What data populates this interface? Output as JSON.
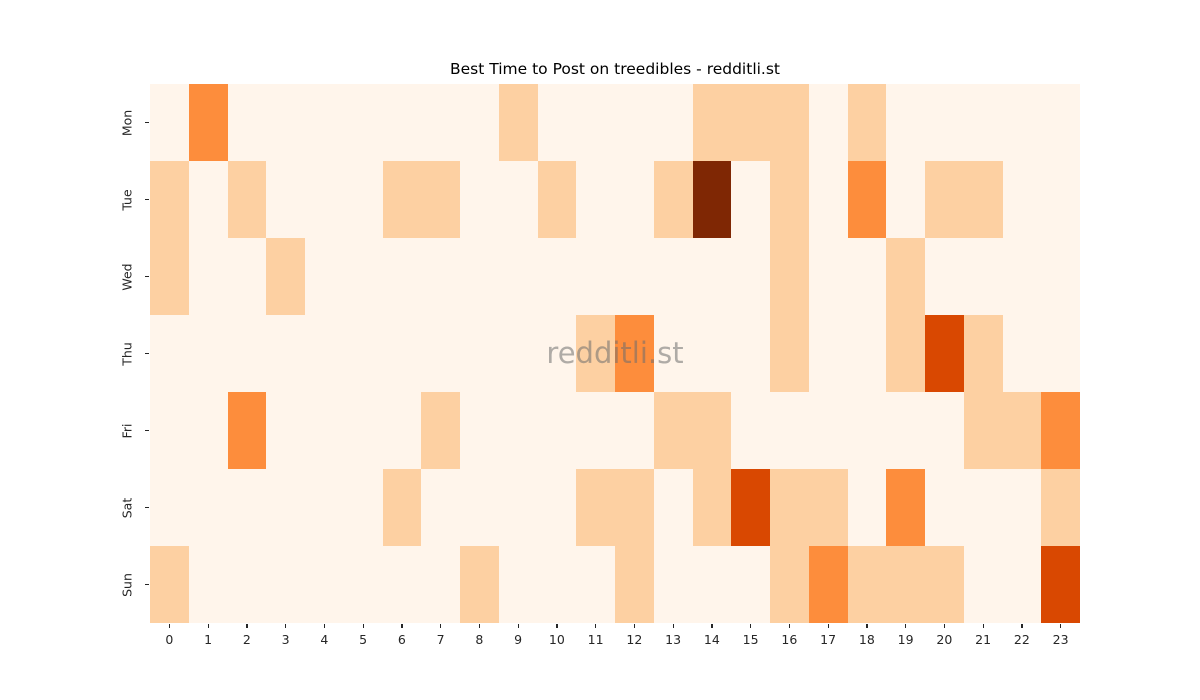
{
  "chart_data": {
    "type": "heatmap",
    "title": "Best Time to Post on treedibles - redditli.st",
    "watermark": "redditli.st",
    "xlabel": "",
    "ylabel": "",
    "legend": "none",
    "grid": false,
    "rows": [
      "Mon",
      "Tue",
      "Wed",
      "Thu",
      "Fri",
      "Sat",
      "Sun"
    ],
    "cols": [
      "0",
      "1",
      "2",
      "3",
      "4",
      "5",
      "6",
      "7",
      "8",
      "9",
      "10",
      "11",
      "12",
      "13",
      "14",
      "15",
      "16",
      "17",
      "18",
      "19",
      "20",
      "21",
      "22",
      "23"
    ],
    "values": [
      [
        0,
        2,
        0,
        0,
        0,
        0,
        0,
        0,
        0,
        1,
        0,
        0,
        0,
        0,
        1,
        1,
        1,
        0,
        1,
        0,
        0,
        0,
        0,
        0
      ],
      [
        1,
        0,
        1,
        0,
        0,
        0,
        1,
        1,
        0,
        0,
        1,
        0,
        0,
        1,
        4,
        0,
        1,
        0,
        2,
        0,
        1,
        1,
        0,
        0
      ],
      [
        1,
        0,
        0,
        1,
        0,
        0,
        0,
        0,
        0,
        0,
        0,
        0,
        0,
        0,
        0,
        0,
        1,
        0,
        0,
        1,
        0,
        0,
        0,
        0
      ],
      [
        0,
        0,
        0,
        0,
        0,
        0,
        0,
        0,
        0,
        0,
        0,
        1,
        2,
        0,
        0,
        0,
        1,
        0,
        0,
        1,
        3,
        1,
        0,
        0
      ],
      [
        0,
        0,
        2,
        0,
        0,
        0,
        0,
        1,
        0,
        0,
        0,
        0,
        0,
        1,
        1,
        0,
        0,
        0,
        0,
        0,
        0,
        1,
        1,
        2
      ],
      [
        0,
        0,
        0,
        0,
        0,
        0,
        1,
        0,
        0,
        0,
        0,
        1,
        1,
        0,
        1,
        3,
        1,
        1,
        0,
        2,
        0,
        0,
        0,
        1
      ],
      [
        1,
        0,
        0,
        0,
        0,
        0,
        0,
        0,
        1,
        0,
        0,
        0,
        1,
        0,
        0,
        0,
        1,
        2,
        1,
        1,
        1,
        0,
        0,
        3
      ]
    ],
    "value_range": [
      0,
      4
    ],
    "colormap_name": "Oranges",
    "colormap": {
      "0": "#fff5eb",
      "1": "#fdd0a2",
      "2": "#fd8d3c",
      "3": "#d94801",
      "4": "#7f2704"
    },
    "axes_colors": {
      "tick_color": "#262626",
      "title_color": "#000000",
      "watermark_color": "#6e6e6e"
    }
  }
}
